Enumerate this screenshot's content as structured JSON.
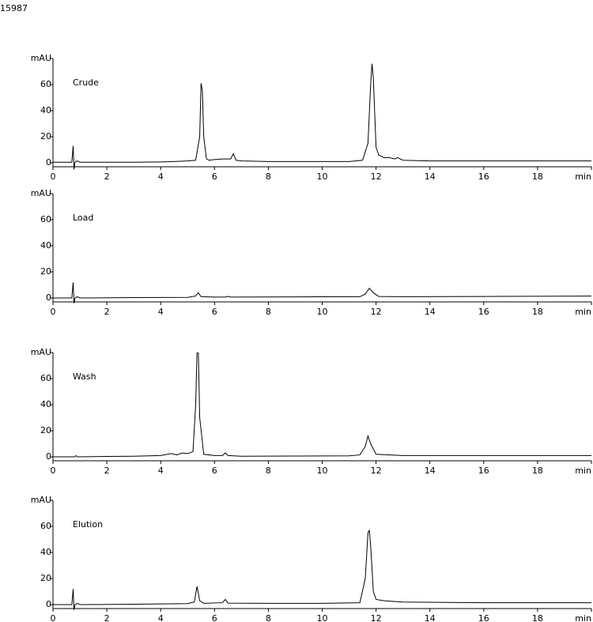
{
  "page_label": "15987",
  "chart_data": [
    {
      "type": "line",
      "label": "Crude",
      "color": "#000000",
      "xlim": [
        0,
        20
      ],
      "ylim": [
        -3,
        80
      ],
      "xticks": [
        0,
        2,
        4,
        6,
        8,
        10,
        12,
        14,
        16,
        18,
        {
          "value": 20,
          "label": "min"
        }
      ],
      "yticks": [
        0,
        20,
        40,
        60,
        {
          "value": 80,
          "label": "mAU"
        }
      ],
      "x": [
        0,
        0.7,
        0.75,
        0.78,
        0.82,
        0.9,
        1,
        2,
        3,
        4,
        4.5,
        5,
        5.3,
        5.45,
        5.5,
        5.55,
        5.6,
        5.7,
        5.8,
        6,
        6.3,
        6.6,
        6.7,
        6.8,
        7,
        8,
        9,
        10,
        11,
        11.5,
        11.7,
        11.8,
        11.85,
        11.9,
        12,
        12.1,
        12.3,
        12.5,
        12.7,
        12.8,
        13,
        14,
        16,
        18,
        20
      ],
      "values": [
        0.5,
        0.5,
        13,
        -5,
        0.5,
        1.5,
        0.5,
        0.5,
        0.5,
        0.7,
        1,
        1.5,
        2,
        20,
        61,
        55,
        20,
        3,
        2,
        2.5,
        3,
        3,
        7,
        2,
        1.5,
        1,
        1,
        1,
        1,
        2,
        15,
        60,
        76,
        65,
        12,
        6,
        4,
        4,
        3,
        4,
        2,
        1.5,
        1.5,
        1.5,
        1.5
      ]
    },
    {
      "type": "line",
      "label": "Load",
      "color": "#000000",
      "xlim": [
        0,
        20
      ],
      "ylim": [
        -3,
        80
      ],
      "xticks": [
        0,
        2,
        4,
        6,
        8,
        10,
        12,
        14,
        16,
        18,
        {
          "value": 20,
          "label": "min"
        }
      ],
      "yticks": [
        0,
        20,
        40,
        60,
        {
          "value": 80,
          "label": "mAU"
        }
      ],
      "x": [
        0,
        0.7,
        0.75,
        0.78,
        0.82,
        0.9,
        1,
        3,
        5,
        5.3,
        5.4,
        5.5,
        6,
        6.4,
        6.5,
        6.6,
        8,
        10,
        11.4,
        11.6,
        11.75,
        11.9,
        12.1,
        13,
        16,
        20
      ],
      "values": [
        0,
        0,
        12,
        -4,
        0,
        1,
        0,
        0.3,
        0.5,
        1.5,
        4,
        1,
        0.7,
        0.7,
        1.2,
        0.7,
        0.8,
        0.9,
        1,
        3,
        7.5,
        4,
        1.2,
        1,
        1.2,
        1.5
      ]
    },
    {
      "type": "line",
      "label": "Wash",
      "color": "#000000",
      "xlim": [
        0,
        20
      ],
      "ylim": [
        -3,
        80
      ],
      "xticks": [
        0,
        2,
        4,
        6,
        8,
        10,
        12,
        14,
        16,
        18,
        {
          "value": 20,
          "label": "min"
        }
      ],
      "yticks": [
        0,
        20,
        40,
        60,
        {
          "value": 80,
          "label": "mAU"
        }
      ],
      "x": [
        0,
        0.8,
        0.85,
        0.9,
        2,
        3,
        4,
        4.4,
        4.6,
        4.8,
        5,
        5.2,
        5.3,
        5.35,
        5.4,
        5.45,
        5.6,
        6,
        6.3,
        6.4,
        6.5,
        7,
        9,
        11,
        11.4,
        11.6,
        11.7,
        11.8,
        12,
        13,
        16,
        20
      ],
      "values": [
        0,
        0,
        1,
        0,
        0.3,
        0.5,
        1,
        2.5,
        1.5,
        3,
        2.5,
        4,
        40,
        80,
        80,
        30,
        2,
        1,
        1,
        3,
        1,
        0.5,
        0.6,
        0.8,
        1.5,
        8,
        16,
        10,
        2,
        1,
        1,
        1
      ]
    },
    {
      "type": "line",
      "label": "Elution",
      "color": "#000000",
      "xlim": [
        0,
        20
      ],
      "ylim": [
        -3,
        80
      ],
      "xticks": [
        0,
        2,
        4,
        6,
        8,
        10,
        12,
        14,
        16,
        18,
        {
          "value": 20,
          "label": "min"
        }
      ],
      "yticks": [
        0,
        20,
        40,
        60,
        {
          "value": 80,
          "label": "mAU"
        }
      ],
      "x": [
        0,
        0.7,
        0.75,
        0.78,
        0.82,
        0.9,
        1,
        3,
        5,
        5.25,
        5.35,
        5.45,
        5.6,
        6.3,
        6.4,
        6.5,
        8,
        10,
        11.4,
        11.6,
        11.7,
        11.75,
        11.8,
        11.9,
        12,
        12.3,
        13,
        16,
        20
      ],
      "values": [
        0,
        0,
        12,
        -4,
        0,
        1,
        0,
        0.3,
        0.8,
        2,
        14,
        3,
        1,
        1.5,
        4,
        1.2,
        1,
        1,
        1.5,
        20,
        55,
        57,
        45,
        10,
        4,
        3,
        2,
        1.5,
        1.5
      ]
    }
  ]
}
